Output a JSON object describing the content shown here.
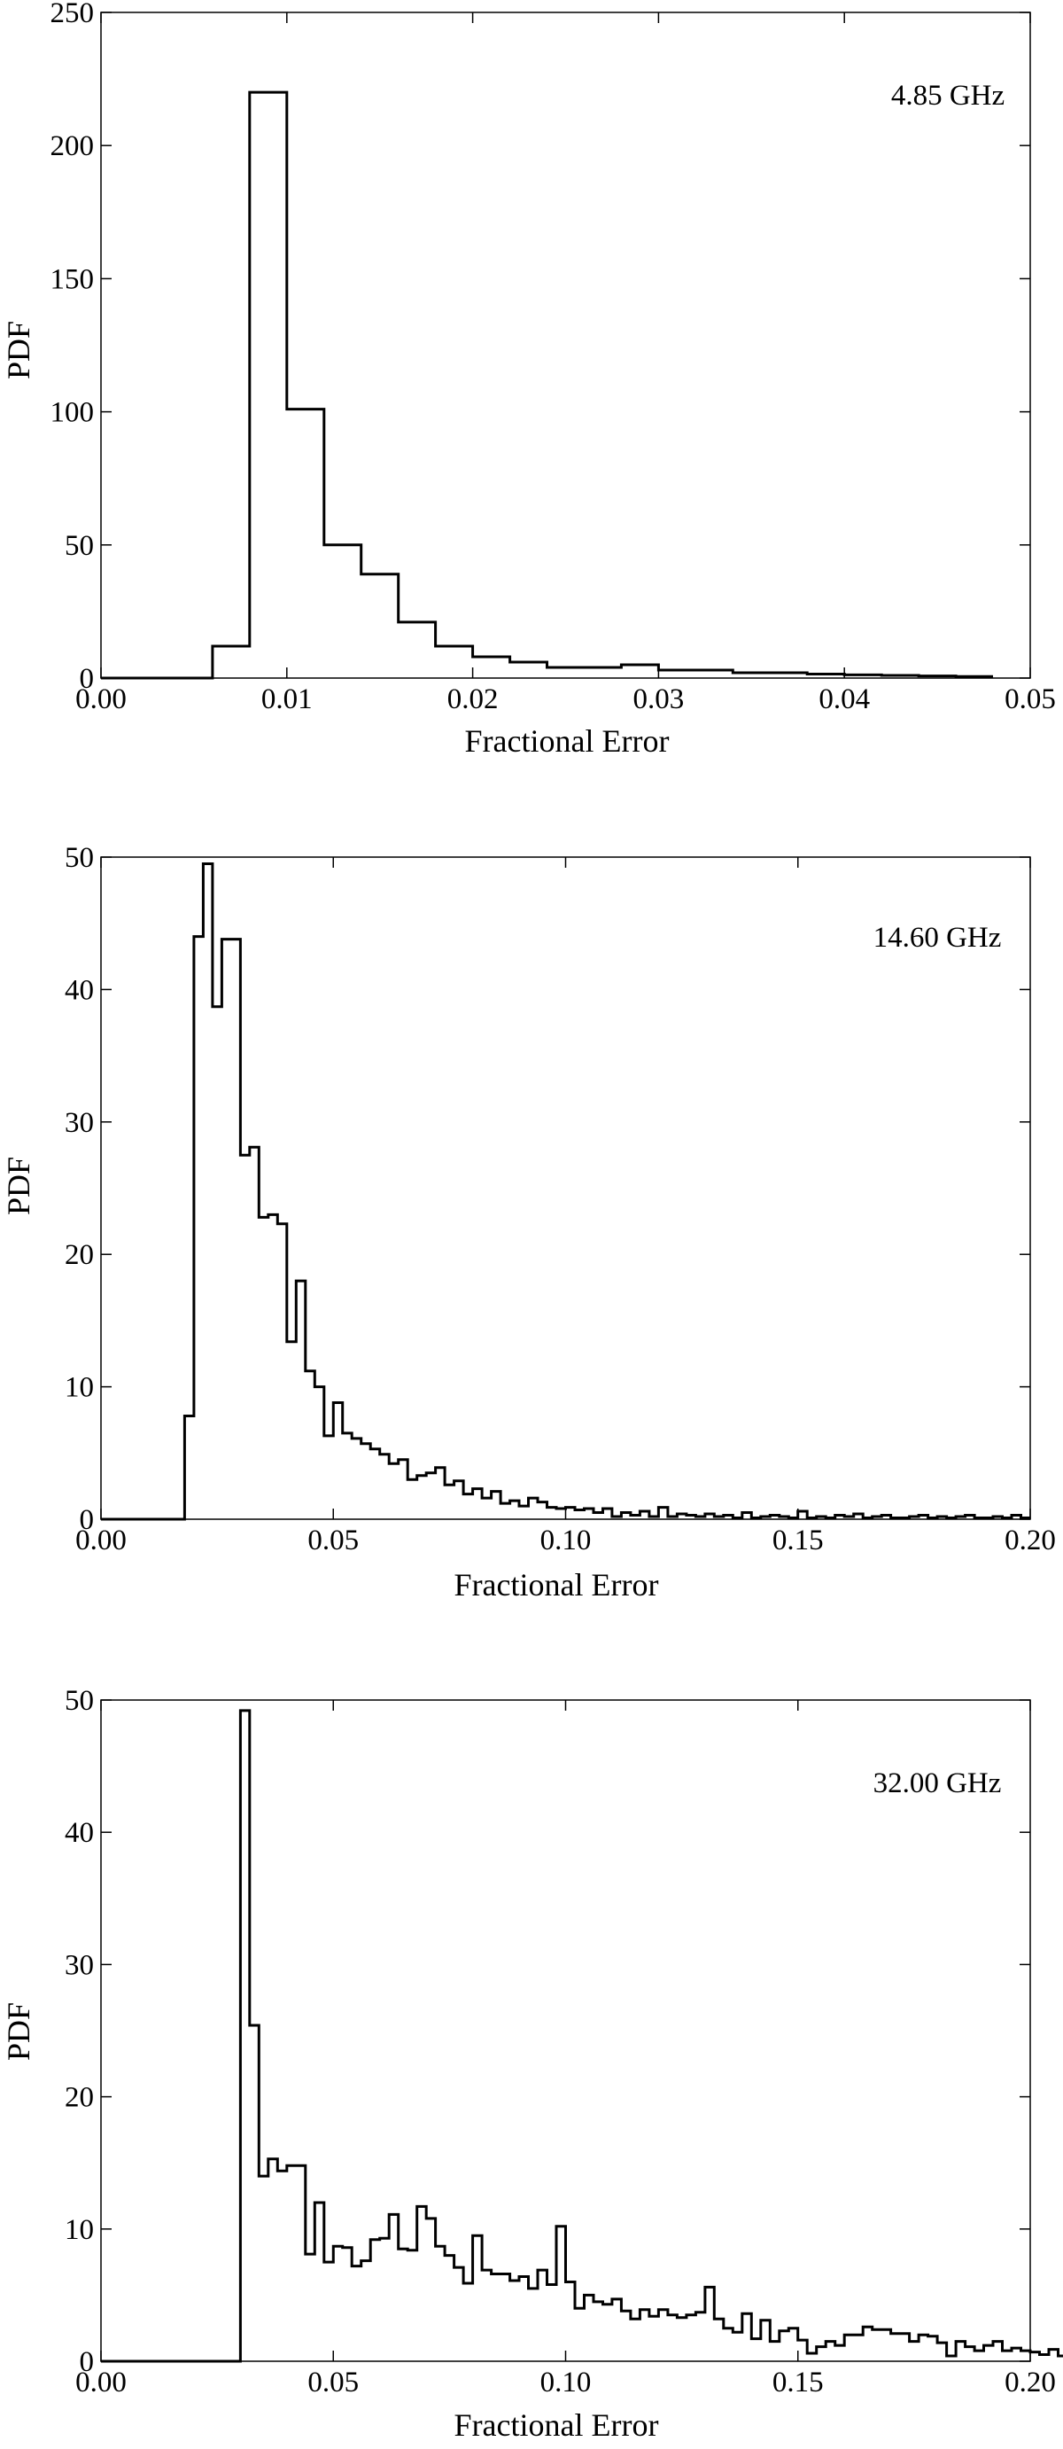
{
  "chart_data": [
    {
      "type": "histogram",
      "annotation": "4.85 GHz",
      "xlabel": "Fractional Error",
      "ylabel": "PDF",
      "xlim": [
        0.0,
        0.05
      ],
      "ylim": [
        0,
        250
      ],
      "xticks": [
        "0.00",
        "0.01",
        "0.02",
        "0.03",
        "0.04",
        "0.05"
      ],
      "yticks": [
        "0",
        "50",
        "100",
        "150",
        "200",
        "250"
      ],
      "grid": false,
      "bin_edges": [
        0.0,
        0.006,
        0.008,
        0.01,
        0.012,
        0.014,
        0.016,
        0.018,
        0.02,
        0.022,
        0.024,
        0.026,
        0.028,
        0.03,
        0.032,
        0.034,
        0.036,
        0.038,
        0.04,
        0.042,
        0.044,
        0.046,
        0.048
      ],
      "values": [
        0,
        12,
        220,
        101,
        50,
        39,
        21,
        12,
        8,
        6,
        4,
        4,
        5,
        3,
        3,
        2,
        2,
        1.5,
        1.2,
        1,
        0.8,
        0.6
      ]
    },
    {
      "type": "histogram",
      "annotation": "14.60 GHz",
      "xlabel": "Fractional Error",
      "ylabel": "PDF",
      "xlim": [
        0.0,
        0.2
      ],
      "ylim": [
        0,
        50
      ],
      "xticks": [
        "0.00",
        "0.05",
        "0.10",
        "0.15",
        "0.20"
      ],
      "yticks": [
        "0",
        "10",
        "20",
        "30",
        "40",
        "50"
      ],
      "grid": false,
      "bin_start": 0.018,
      "bin_width": 0.002,
      "values": [
        7.8,
        44,
        49.5,
        38.7,
        43.8,
        43.8,
        27.5,
        28.1,
        22.8,
        23,
        22.3,
        13.4,
        18,
        11.2,
        10,
        6.3,
        8.8,
        6.5,
        6.1,
        5.7,
        5.3,
        4.9,
        4.2,
        4.5,
        3,
        3.3,
        3.5,
        3.9,
        2.6,
        2.9,
        1.9,
        2.3,
        1.6,
        2.1,
        1.2,
        1.4,
        1,
        1.6,
        1.3,
        0.9,
        0.8,
        0.9,
        0.7,
        0.8,
        0.5,
        0.8,
        0.2,
        0.5,
        0.3,
        0.6,
        0.2,
        0.9,
        0.2,
        0.4,
        0.3,
        0.2,
        0.4,
        0.2,
        0.3,
        0.1,
        0.5,
        0.1,
        0.2,
        0.3,
        0.2,
        0.1,
        0.6,
        0.1,
        0.2,
        0.1,
        0.3,
        0.2,
        0.4,
        0.1,
        0.2,
        0.3,
        0.1,
        0.1,
        0.2,
        0.3,
        0.1,
        0.2,
        0.1,
        0.2,
        0.3,
        0.1,
        0.1,
        0.2,
        0.1,
        0.3,
        0.1
      ]
    },
    {
      "type": "histogram",
      "annotation": "32.00 GHz",
      "xlabel": "Fractional Error",
      "ylabel": "PDF",
      "xlim": [
        0.0,
        0.2
      ],
      "ylim": [
        0,
        50
      ],
      "xticks": [
        "0.00",
        "0.05",
        "0.10",
        "0.15",
        "0.20"
      ],
      "yticks": [
        "0",
        "10",
        "20",
        "30",
        "40",
        "50"
      ],
      "grid": false,
      "bin_start": 0.03,
      "bin_width": 0.002,
      "values": [
        49.2,
        25.4,
        14,
        15.3,
        14.4,
        14.8,
        14.8,
        8.1,
        12,
        7.5,
        8.7,
        8.6,
        7.2,
        7.6,
        9.2,
        9.3,
        11.1,
        8.5,
        8.4,
        11.7,
        10.8,
        8.7,
        8,
        7.1,
        5.9,
        9.5,
        6.9,
        6.6,
        6.6,
        6.1,
        6.4,
        5.5,
        6.9,
        5.8,
        10.2,
        6,
        4,
        5,
        4.5,
        4.3,
        4.7,
        3.8,
        3.2,
        3.9,
        3.4,
        3.9,
        3.5,
        3.3,
        3.5,
        3.7,
        5.6,
        3.2,
        2.5,
        2.2,
        3.6,
        1.7,
        3.1,
        1.5,
        2.3,
        2.5,
        1.6,
        0.6,
        1.1,
        1.5,
        1.2,
        2,
        2,
        2.6,
        2.4,
        2.4,
        2.1,
        2.1,
        1.5,
        2,
        1.9,
        1.4,
        0.4,
        1.5,
        1.1,
        0.8,
        1.2,
        1.5,
        0.8,
        1,
        0.8,
        0.7,
        0.5,
        0.9,
        0.4,
        0.6,
        0.4,
        1.1,
        0.3,
        0.8,
        0.3,
        0.4,
        0.6,
        0.2,
        0.5,
        0.1,
        0.6
      ]
    }
  ]
}
